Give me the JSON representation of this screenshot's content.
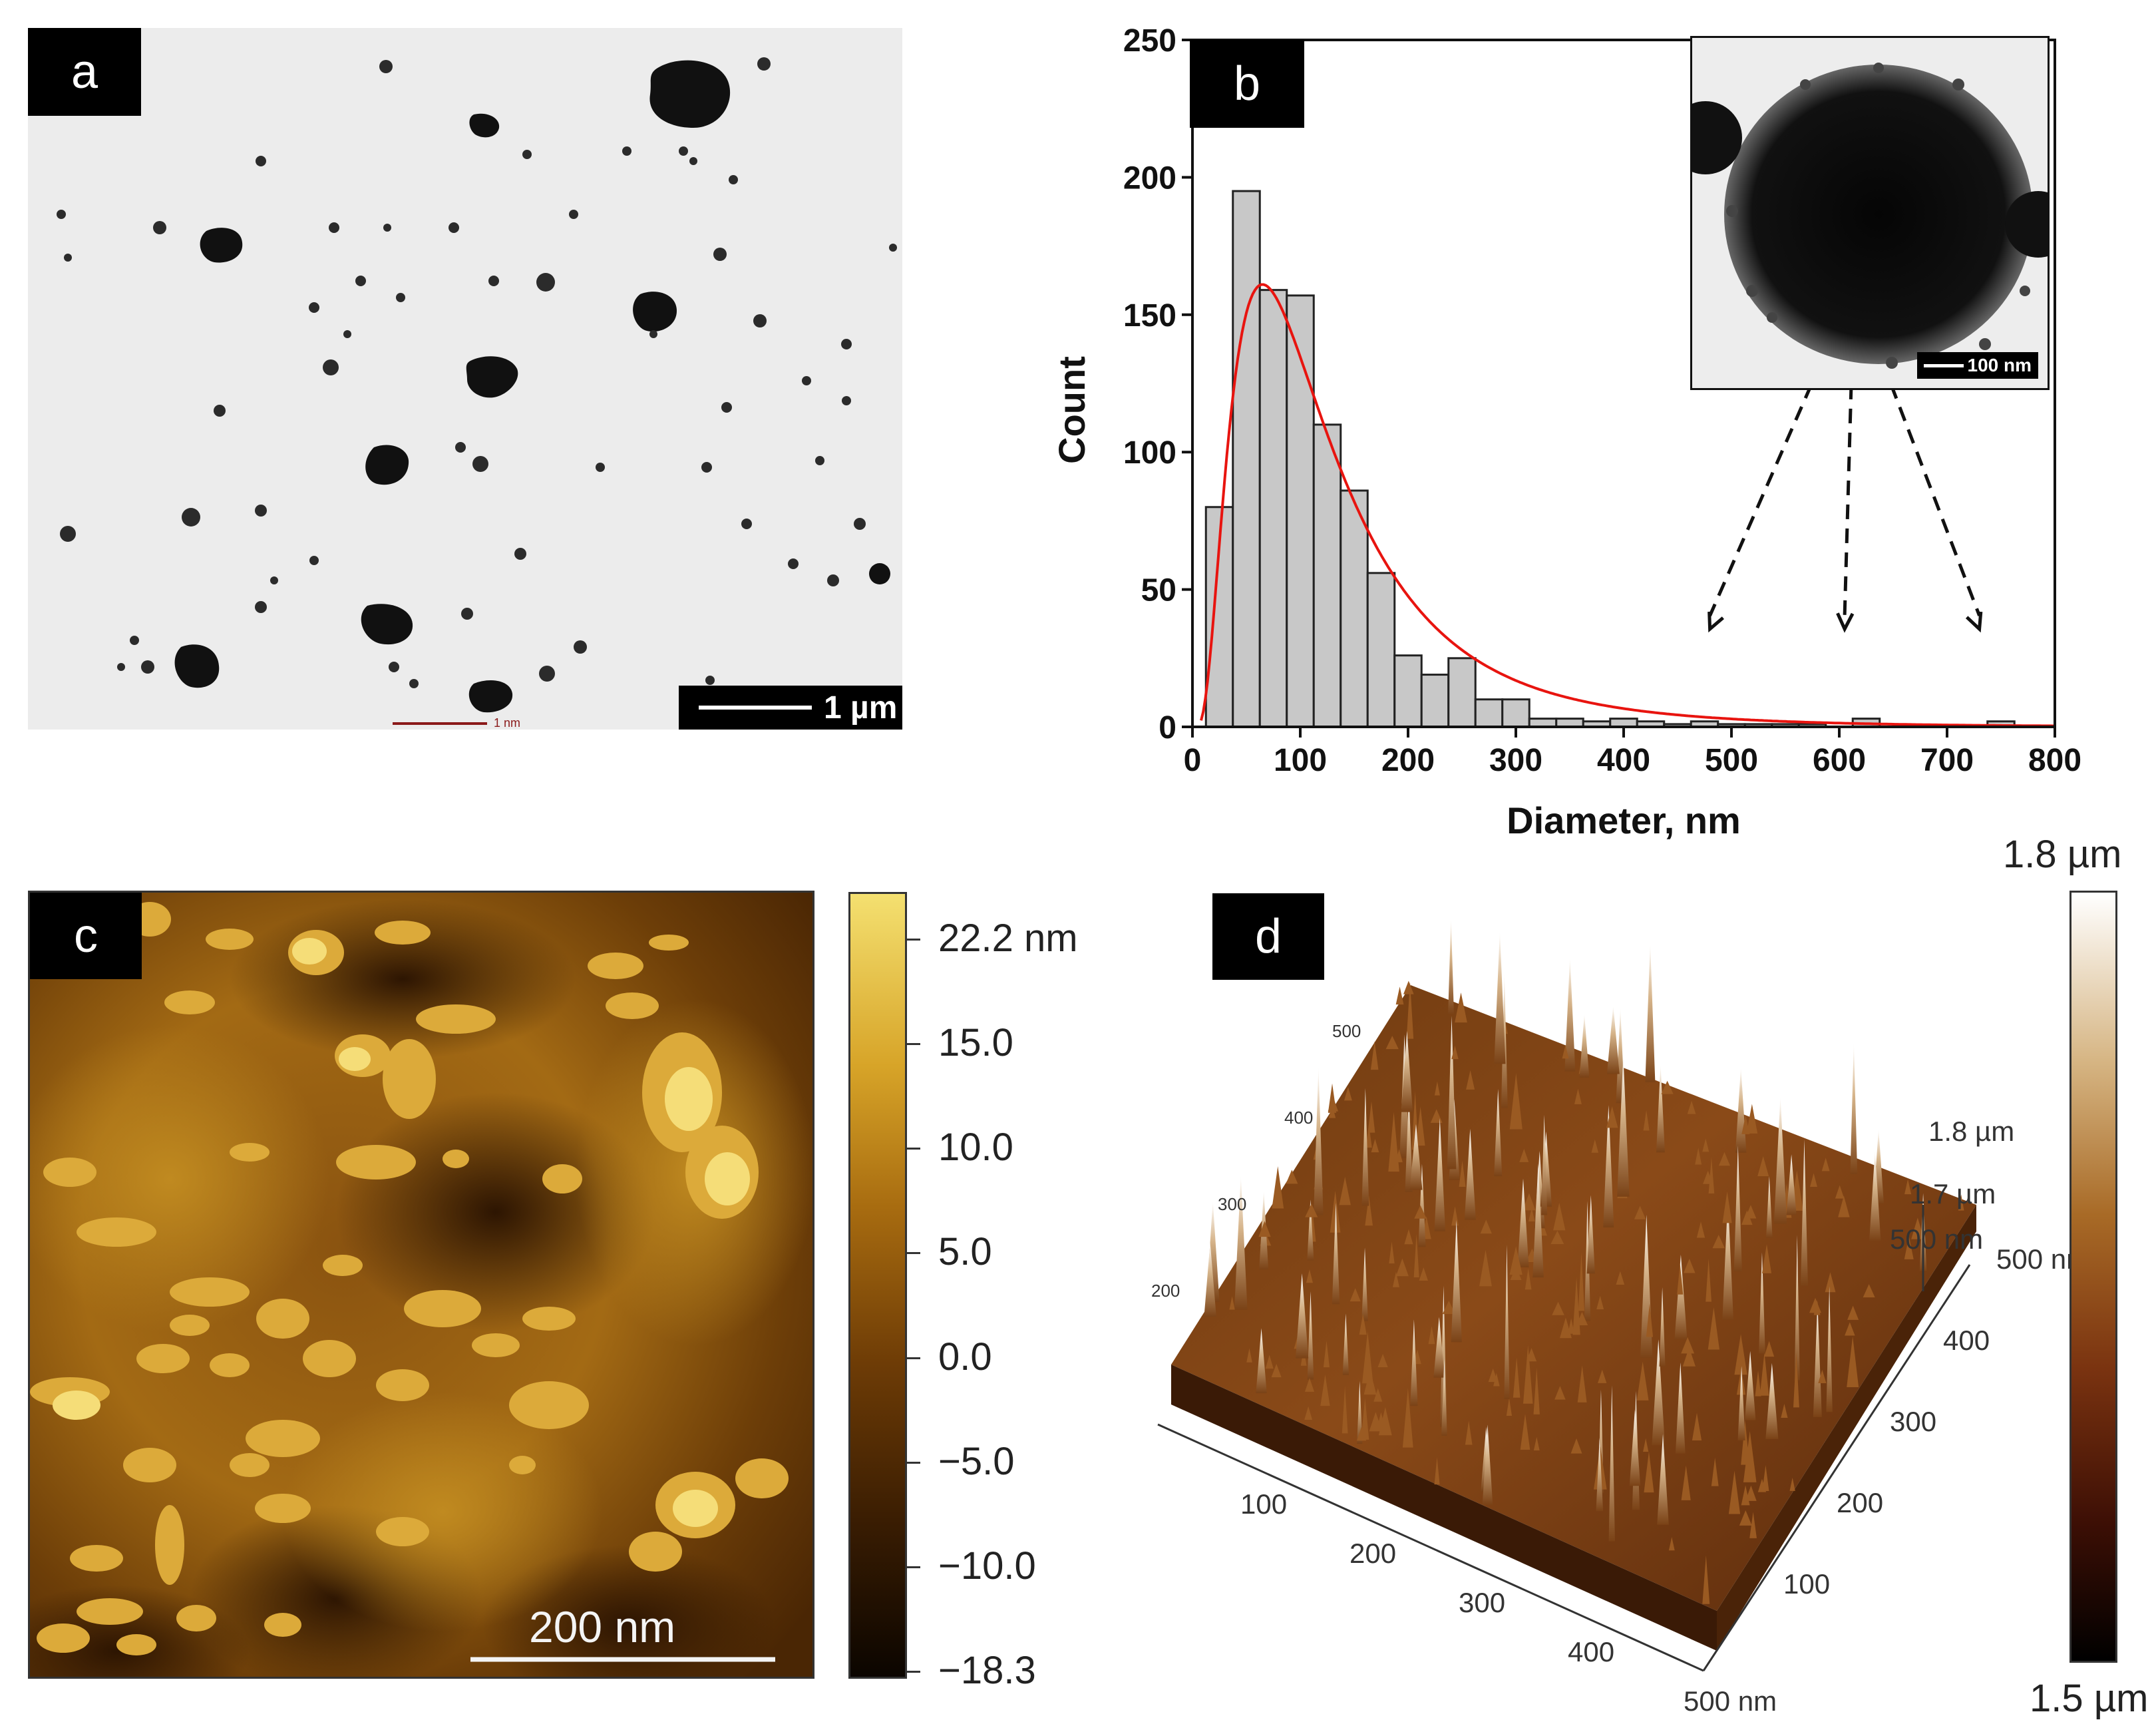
{
  "panels": {
    "a": {
      "label": "a",
      "scalebar": "1 µm",
      "faint_scale_text": "1 nm"
    },
    "b": {
      "label": "b",
      "inset_scalebar": "100 nm"
    },
    "c": {
      "label": "c",
      "scalebar": "200 nm",
      "colorbar_ticks": [
        "22.2 nm",
        "15.0",
        "10.0",
        "5.0",
        "0.0",
        "−5.0",
        "−10.0",
        "−18.3"
      ]
    },
    "d": {
      "label": "d",
      "colorbar_max": "1.8 µm",
      "colorbar_min": "1.5 µm",
      "z_ticks": [
        "1.8 µm",
        "1.7 µm"
      ],
      "x_ticks": [
        "100",
        "200",
        "300",
        "400",
        "500 nm"
      ],
      "y_ticks": [
        "100",
        "200",
        "300",
        "400",
        "500 nm"
      ],
      "corner_label": "500 nm",
      "back_ticks": [
        "500",
        "400",
        "300",
        "200"
      ]
    }
  },
  "chart_data": {
    "type": "bar",
    "xlabel": "Diameter, nm",
    "ylabel": "Count",
    "xlim": [
      0,
      800
    ],
    "ylim": [
      0,
      250
    ],
    "xticks": [
      0,
      100,
      200,
      300,
      400,
      500,
      600,
      700,
      800
    ],
    "yticks": [
      0,
      50,
      100,
      150,
      200,
      250
    ],
    "bin_width": 25,
    "bins": [
      {
        "x": 25,
        "count": 80
      },
      {
        "x": 50,
        "count": 195
      },
      {
        "x": 75,
        "count": 159
      },
      {
        "x": 100,
        "count": 157
      },
      {
        "x": 125,
        "count": 110
      },
      {
        "x": 150,
        "count": 86
      },
      {
        "x": 175,
        "count": 56
      },
      {
        "x": 200,
        "count": 26
      },
      {
        "x": 225,
        "count": 19
      },
      {
        "x": 250,
        "count": 25
      },
      {
        "x": 275,
        "count": 10
      },
      {
        "x": 300,
        "count": 10
      },
      {
        "x": 325,
        "count": 3
      },
      {
        "x": 350,
        "count": 3
      },
      {
        "x": 375,
        "count": 2
      },
      {
        "x": 400,
        "count": 3
      },
      {
        "x": 425,
        "count": 2
      },
      {
        "x": 450,
        "count": 1
      },
      {
        "x": 475,
        "count": 2
      },
      {
        "x": 500,
        "count": 1
      },
      {
        "x": 525,
        "count": 1
      },
      {
        "x": 550,
        "count": 1
      },
      {
        "x": 575,
        "count": 1
      },
      {
        "x": 600,
        "count": 0
      },
      {
        "x": 625,
        "count": 3
      },
      {
        "x": 650,
        "count": 0
      },
      {
        "x": 675,
        "count": 0
      },
      {
        "x": 700,
        "count": 0
      },
      {
        "x": 725,
        "count": 0
      },
      {
        "x": 750,
        "count": 2
      }
    ],
    "fit_curve": {
      "type": "lognormal",
      "peak_x": 65,
      "peak_y": 161,
      "color": "#e8140f"
    },
    "bar_color": "#c8c8c8"
  }
}
